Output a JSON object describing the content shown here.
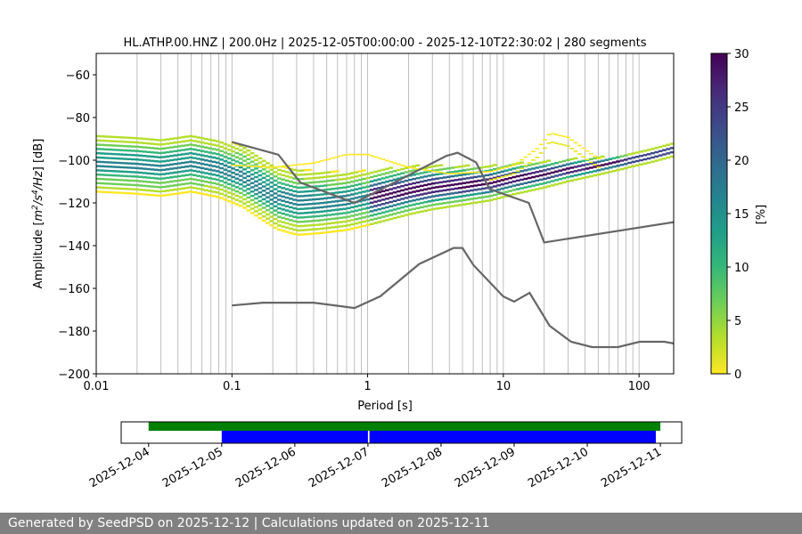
{
  "chart_data": [
    {
      "type": "heatmap",
      "title": "HL.ATHP.00.HNZ | 200.0Hz | 2025-12-05T00:00:00 - 2025-12-10T22:30:02 | 280 segments",
      "xlabel": "Period [s]",
      "ylabel_parts": [
        "Amplitude [",
        "m",
        "2",
        "/s",
        "4",
        "/Hz",
        "] [dB]"
      ],
      "x_scale": "log",
      "xlim": [
        0.01,
        180
      ],
      "ylim": [
        -200,
        -50
      ],
      "x_ticks": [
        {
          "value": 0.01,
          "label": "0.01"
        },
        {
          "value": 0.1,
          "label": "0.1"
        },
        {
          "value": 1,
          "label": "1"
        },
        {
          "value": 10,
          "label": "10"
        },
        {
          "value": 100,
          "label": "100"
        }
      ],
      "y_ticks": [
        {
          "value": -60,
          "label": "−60"
        },
        {
          "value": -80,
          "label": "−80"
        },
        {
          "value": -100,
          "label": "−100"
        },
        {
          "value": -120,
          "label": "−120"
        },
        {
          "value": -140,
          "label": "−140"
        },
        {
          "value": -160,
          "label": "−160"
        },
        {
          "value": -180,
          "label": "−180"
        },
        {
          "value": -200,
          "label": "−200"
        }
      ],
      "grid": "x-only (log minor)",
      "colorbar": {
        "label": "[%]",
        "range": [
          0,
          30
        ],
        "ticks": [
          {
            "value": 0,
            "label": "0"
          },
          {
            "value": 5,
            "label": "5"
          },
          {
            "value": 10,
            "label": "10"
          },
          {
            "value": 15,
            "label": "15"
          },
          {
            "value": 20,
            "label": "20"
          },
          {
            "value": 25,
            "label": "25"
          },
          {
            "value": 30,
            "label": "30"
          }
        ],
        "colormap": "viridis_r",
        "colors": [
          "#fde725",
          "#b5de2b",
          "#6ece58",
          "#35b779",
          "#1f9e89",
          "#26828e",
          "#31688e",
          "#3e4989",
          "#482878",
          "#440154"
        ]
      },
      "mode": {
        "period": [
          0.01,
          0.02,
          0.03,
          0.05,
          0.08,
          0.12,
          0.17,
          0.22,
          0.3,
          0.45,
          0.7,
          1,
          1.5,
          2,
          3,
          5,
          8,
          12,
          20,
          30,
          50,
          80,
          120,
          180
        ],
        "db": [
          -102,
          -103,
          -104,
          -102,
          -104,
          -108,
          -114,
          -118,
          -120,
          -120,
          -119.5,
          -118,
          -116,
          -114.5,
          -113,
          -112,
          -111,
          -109,
          -107,
          -105,
          -103,
          -101,
          -98.5,
          -95.5
        ]
      },
      "secondary_band": {
        "period": [
          0.1,
          0.2,
          0.4,
          0.7,
          1.0,
          2,
          4,
          8,
          12,
          18,
          22,
          30,
          45,
          60
        ],
        "db": [
          -103,
          -104,
          -102,
          -98,
          -98,
          -104,
          -107,
          -106,
          -103,
          -95,
          -88,
          -90,
          -98,
          -103
        ]
      },
      "nlnm": {
        "period": [
          0.1,
          0.17,
          0.4,
          0.8,
          1.24,
          2.4,
          4.3,
          5.0,
          6.0,
          10.0,
          12.0,
          15.6,
          21.9,
          31.6,
          45.0,
          70.0,
          101.0,
          154.0,
          180
        ],
        "db": [
          -168,
          -166.7,
          -166.7,
          -169.2,
          -163.7,
          -148.6,
          -141.1,
          -141.1,
          -149.0,
          -163.8,
          -166.2,
          -162.1,
          -177.5,
          -185.0,
          -187.5,
          -187.5,
          -185.0,
          -185.0,
          -185.8
        ]
      },
      "nhnm": {
        "period": [
          0.1,
          0.22,
          0.32,
          0.8,
          3.8,
          4.6,
          6.3,
          7.9,
          15.4,
          20.0,
          180
        ],
        "db": [
          -91.5,
          -97.4,
          -110.5,
          -120.0,
          -98.0,
          -96.5,
          -101.0,
          -113.5,
          -120.0,
          -138.5,
          -129
        ]
      },
      "series": [
        {
          "name": "",
          "role": "noise-model-high"
        },
        {
          "name": "",
          "role": "noise-model-low"
        }
      ]
    },
    {
      "type": "timeline",
      "x_ticks": [
        "2025-12-04",
        "2025-12-05",
        "2025-12-06",
        "2025-12-07",
        "2025-12-08",
        "2025-12-09",
        "2025-12-10",
        "2025-12-11"
      ],
      "xlim": [
        "2025-12-03T15:00",
        "2025-12-11T07:00"
      ],
      "data_availability": [
        {
          "start": "2025-12-04T00:00",
          "end": "2025-12-11T00:00",
          "color": "#008000"
        }
      ],
      "psd_segments": [
        {
          "start": "2025-12-05T00:00",
          "end": "2025-12-07T00:00",
          "color": "#0000ff"
        },
        {
          "start": "2025-12-07T00:30",
          "end": "2025-12-10T22:30",
          "color": "#0000ff"
        }
      ]
    }
  ],
  "footer": {
    "text": "Generated by SeedPSD on 2025-12-12 | Calculations updated on 2025-12-11"
  }
}
